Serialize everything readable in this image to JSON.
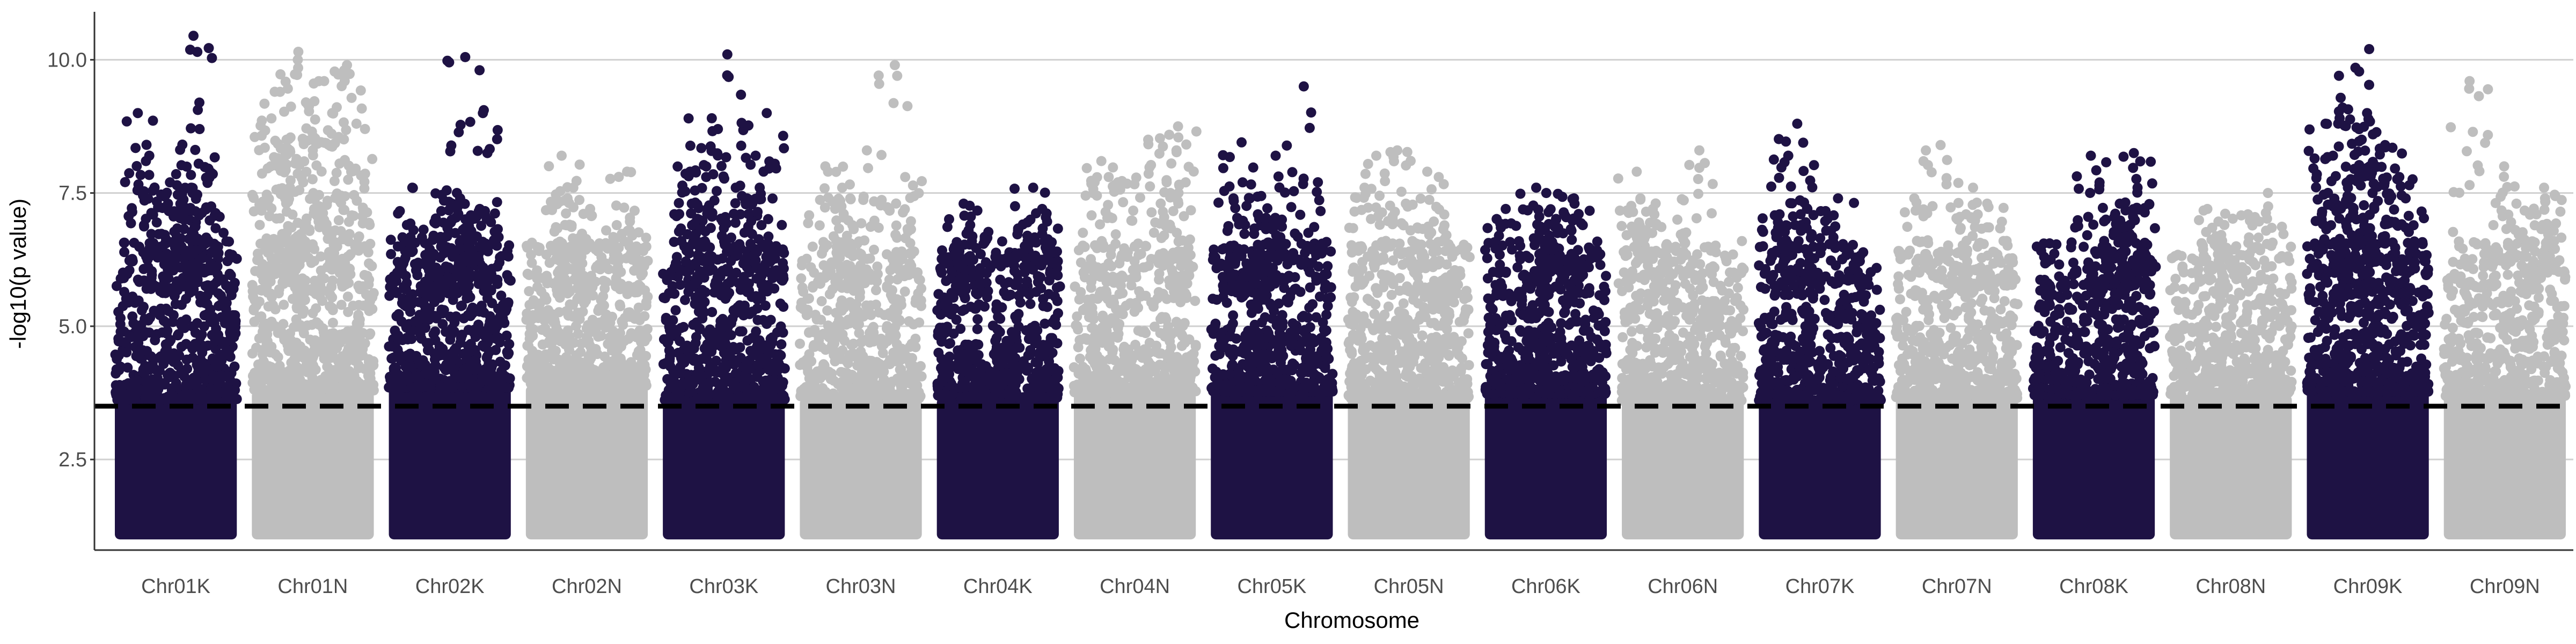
{
  "chart_data": {
    "type": "scatter",
    "subtype": "manhattan",
    "title": "",
    "xlabel": "Chromosome",
    "ylabel": "-log10(p value)",
    "ylim": [
      0.8,
      10.9
    ],
    "yticks": [
      2.5,
      5.0,
      7.5,
      10.0
    ],
    "ytick_labels": [
      "2.5",
      "5.0",
      "7.5",
      "10.0"
    ],
    "grid": {
      "horizontal_major": true,
      "vertical": false
    },
    "legend": "none",
    "threshold": {
      "value": 3.5,
      "style": "dashed",
      "color": "#000000"
    },
    "point_min": 1.0,
    "colors": {
      "odd": "#1e1244",
      "even": "#bebebe",
      "grid": "#d0d0d0",
      "axis": "#333333"
    },
    "chromosomes": [
      {
        "name": "Chr01K",
        "max": 10.45,
        "top_hits": [
          10.45,
          9.0,
          8.7,
          8.2,
          8.1,
          8.05,
          7.7,
          7.6,
          7.5,
          7.3,
          7.2,
          7.1
        ]
      },
      {
        "name": "Chr01N",
        "max": 10.15,
        "top_hits": [
          10.15,
          10.0,
          9.9,
          9.8,
          9.6,
          9.4,
          9.2,
          9.0,
          8.9,
          8.8,
          8.5,
          8.3,
          8.0,
          7.9,
          7.7,
          7.4,
          7.2
        ]
      },
      {
        "name": "Chr02K",
        "max": 10.05,
        "top_hits": [
          10.05,
          9.0,
          7.6,
          7.55,
          7.5,
          7.4,
          7.3,
          7.2,
          7.0,
          6.9
        ]
      },
      {
        "name": "Chr02N",
        "max": 8.2,
        "top_hits": [
          8.2,
          7.9,
          7.6,
          7.4,
          7.2,
          6.9,
          6.8
        ]
      },
      {
        "name": "Chr03K",
        "max": 10.1,
        "top_hits": [
          10.1,
          9.0,
          8.9,
          8.7,
          8.2,
          7.9,
          7.8,
          7.6,
          7.4,
          7.3,
          7.1
        ]
      },
      {
        "name": "Chr03N",
        "max": 9.9,
        "top_hits": [
          9.9,
          8.3,
          8.0,
          7.8,
          7.6,
          7.4
        ]
      },
      {
        "name": "Chr04K",
        "max": 7.6,
        "top_hits": [
          7.6,
          7.3,
          7.2,
          7.0,
          6.9,
          6.8
        ]
      },
      {
        "name": "Chr04N",
        "max": 8.75,
        "top_hits": [
          8.75,
          8.5,
          8.3,
          8.1,
          7.8,
          7.7,
          7.5
        ]
      },
      {
        "name": "Chr05K",
        "max": 9.5,
        "top_hits": [
          9.5,
          8.45,
          8.2,
          7.7,
          7.4,
          7.1,
          7.0
        ]
      },
      {
        "name": "Chr05N",
        "max": 8.3,
        "top_hits": [
          8.3,
          8.2,
          7.9,
          7.8,
          7.6,
          7.3
        ]
      },
      {
        "name": "Chr06K",
        "max": 7.6,
        "top_hits": [
          7.6,
          7.5,
          7.4,
          7.3,
          7.2,
          7.0
        ]
      },
      {
        "name": "Chr06N",
        "max": 8.3,
        "top_hits": [
          8.3,
          7.9,
          7.4,
          7.2,
          7.0
        ]
      },
      {
        "name": "Chr07K",
        "max": 8.8,
        "top_hits": [
          8.8,
          8.2,
          7.4,
          7.2,
          7.1,
          6.9
        ]
      },
      {
        "name": "Chr07N",
        "max": 8.4,
        "top_hits": [
          8.4,
          7.6,
          7.4,
          7.3,
          7.1
        ]
      },
      {
        "name": "Chr08K",
        "max": 8.25,
        "top_hits": [
          8.25,
          8.2,
          7.6,
          7.3,
          7.0,
          6.8
        ]
      },
      {
        "name": "Chr08N",
        "max": 7.5,
        "top_hits": [
          7.5,
          7.2,
          7.1,
          6.9
        ]
      },
      {
        "name": "Chr09K",
        "max": 10.2,
        "top_hits": [
          10.2,
          9.85,
          9.7,
          9.0,
          8.8,
          8.6,
          8.5,
          8.4,
          8.2,
          8.0,
          7.8,
          7.6,
          7.4
        ]
      },
      {
        "name": "Chr09N",
        "max": 9.6,
        "top_hits": [
          9.6,
          8.0,
          7.6,
          7.4,
          7.3,
          7.1
        ]
      }
    ]
  }
}
